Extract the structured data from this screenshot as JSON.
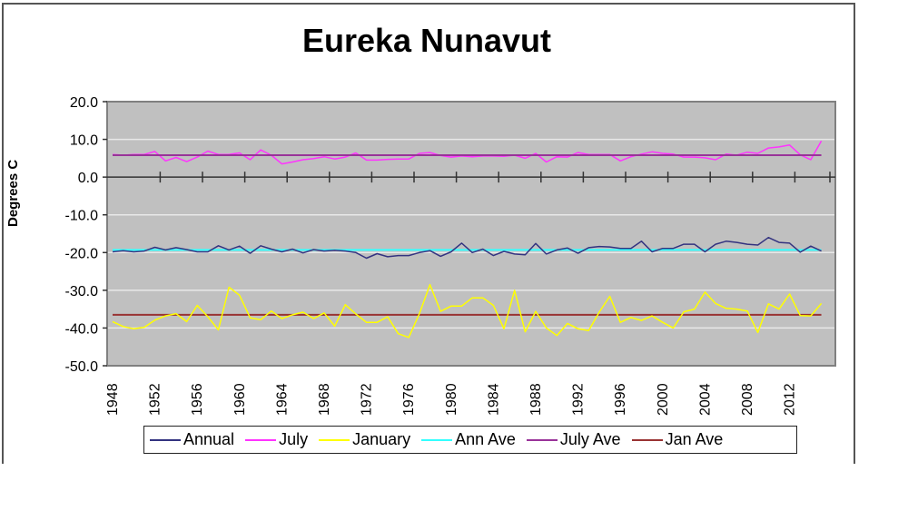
{
  "chart_data": {
    "type": "line",
    "title": "Eureka Nunavut",
    "xlabel": "",
    "ylabel": "Degrees C",
    "ylim": [
      -50,
      20
    ],
    "yticks": [
      "20.0",
      "10.0",
      "0.0",
      "-10.0",
      "-20.0",
      "-30.0",
      "-40.0",
      "-50.0"
    ],
    "xticks": [
      "1948",
      "1952",
      "1956",
      "1960",
      "1964",
      "1968",
      "1972",
      "1976",
      "1980",
      "1984",
      "1988",
      "1992",
      "1996",
      "2000",
      "2004",
      "2008",
      "2012"
    ],
    "grid": true,
    "legend_position": "bottom",
    "x": [
      1948,
      1949,
      1950,
      1951,
      1952,
      1953,
      1954,
      1955,
      1956,
      1957,
      1958,
      1959,
      1960,
      1961,
      1962,
      1963,
      1964,
      1965,
      1966,
      1967,
      1968,
      1969,
      1970,
      1971,
      1972,
      1973,
      1974,
      1975,
      1976,
      1977,
      1978,
      1979,
      1980,
      1981,
      1982,
      1983,
      1984,
      1985,
      1986,
      1987,
      1988,
      1989,
      1990,
      1991,
      1992,
      1993,
      1994,
      1995,
      1996,
      1997,
      1998,
      1999,
      2000,
      2001,
      2002,
      2003,
      2004,
      2005,
      2006,
      2007,
      2008,
      2009,
      2010,
      2011,
      2012,
      2013,
      2014,
      2015
    ],
    "series": [
      {
        "name": "Annual",
        "color": "#333380",
        "values": [
          -19.8,
          -19.5,
          -19.8,
          -19.6,
          -18.6,
          -19.3,
          -18.7,
          -19.2,
          -19.8,
          -19.8,
          -18.2,
          -19.3,
          -18.3,
          -20.2,
          -18.2,
          -19.1,
          -19.8,
          -19.1,
          -20.1,
          -19.2,
          -19.6,
          -19.4,
          -19.6,
          -20.0,
          -21.5,
          -20.3,
          -21.1,
          -20.8,
          -20.8,
          -20.0,
          -19.5,
          -21.0,
          -19.8,
          -17.5,
          -20.0,
          -19.1,
          -20.8,
          -19.7,
          -20.4,
          -20.6,
          -17.6,
          -20.4,
          -19.3,
          -18.8,
          -20.2,
          -18.7,
          -18.4,
          -18.5,
          -18.9,
          -18.9,
          -17.0,
          -19.8,
          -18.9,
          -18.9,
          -17.8,
          -17.8,
          -19.8,
          -17.8,
          -17.0,
          -17.3,
          -17.8,
          -18.0,
          -16.0,
          -17.3,
          -17.5,
          -19.9,
          -18.3,
          -19.6
        ]
      },
      {
        "name": "July",
        "color": "#ff33ff",
        "values": [
          6.0,
          5.8,
          6.0,
          6.0,
          6.8,
          4.3,
          5.2,
          4.1,
          5.3,
          6.9,
          6.0,
          6.0,
          6.4,
          4.6,
          7.2,
          5.8,
          3.5,
          4.0,
          4.6,
          4.9,
          5.4,
          4.8,
          5.3,
          6.4,
          4.5,
          4.5,
          4.7,
          4.8,
          4.8,
          6.3,
          6.5,
          5.7,
          5.3,
          5.6,
          5.4,
          5.6,
          5.6,
          5.5,
          5.8,
          5.0,
          6.3,
          4.0,
          5.4,
          5.3,
          6.5,
          6.0,
          6.0,
          6.0,
          4.3,
          5.4,
          6.1,
          6.7,
          6.3,
          6.1,
          5.3,
          5.3,
          5.1,
          4.6,
          6.1,
          5.8,
          6.6,
          6.3,
          7.7,
          8.0,
          8.5,
          5.9,
          4.6,
          9.6
        ]
      },
      {
        "name": "January",
        "color": "#ffff00",
        "values": [
          -38.3,
          -39.6,
          -40.2,
          -39.8,
          -37.9,
          -36.8,
          -36.2,
          -38.3,
          -34.0,
          -37.0,
          -40.5,
          -29.2,
          -31.3,
          -37.3,
          -37.8,
          -35.5,
          -37.5,
          -36.5,
          -35.8,
          -37.5,
          -36.0,
          -39.5,
          -33.8,
          -36.3,
          -38.5,
          -38.5,
          -37.0,
          -41.5,
          -42.5,
          -36.2,
          -28.5,
          -35.6,
          -34.2,
          -34.2,
          -32.0,
          -32.0,
          -34.0,
          -40.2,
          -30.0,
          -41.0,
          -35.6,
          -40.0,
          -42.0,
          -38.8,
          -40.2,
          -40.7,
          -35.8,
          -31.6,
          -38.5,
          -37.2,
          -38.0,
          -36.8,
          -38.5,
          -40.0,
          -35.7,
          -35.0,
          -30.5,
          -33.5,
          -34.8,
          -35.0,
          -35.5,
          -41.2,
          -33.6,
          -35.0,
          -31.0,
          -36.7,
          -36.8,
          -33.5
        ]
      },
      {
        "name": "Ann Ave",
        "color": "#33ffff",
        "constant": -19.3
      },
      {
        "name": "July Ave",
        "color": "#993399",
        "constant": 5.8
      },
      {
        "name": "Jan Ave",
        "color": "#993333",
        "constant": -36.5
      }
    ]
  },
  "legend": {
    "items": [
      {
        "label": "Annual",
        "color": "#333380"
      },
      {
        "label": "July",
        "color": "#ff33ff"
      },
      {
        "label": "January",
        "color": "#ffff00"
      },
      {
        "label": "Ann Ave",
        "color": "#33ffff"
      },
      {
        "label": "July Ave",
        "color": "#993399"
      },
      {
        "label": "Jan Ave",
        "color": "#993333"
      }
    ]
  },
  "colors": {
    "plot_background": "#c0c0c0",
    "gridline": "#e8e8e8"
  }
}
